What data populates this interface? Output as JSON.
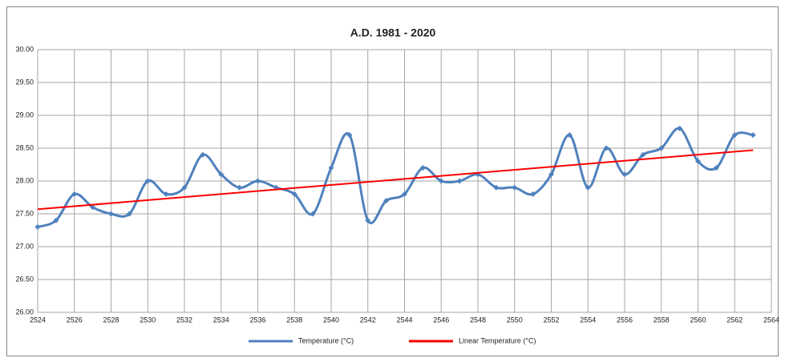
{
  "chart_data": {
    "type": "line",
    "title": "A.D. 1981 - 2020",
    "xlim": [
      2524,
      2564
    ],
    "xticks": [
      2524,
      2526,
      2528,
      2530,
      2532,
      2534,
      2536,
      2538,
      2540,
      2542,
      2544,
      2546,
      2548,
      2550,
      2552,
      2554,
      2556,
      2558,
      2560,
      2562,
      2564
    ],
    "ylim": [
      26,
      30
    ],
    "yticks": [
      {
        "value": 26,
        "label": "26.00"
      },
      {
        "value": 26.5,
        "label": "26.50"
      },
      {
        "value": 27,
        "label": "27.00"
      },
      {
        "value": 27.5,
        "label": "27.50"
      },
      {
        "value": 28,
        "label": "28.00"
      },
      {
        "value": 28.5,
        "label": "28.50"
      },
      {
        "value": 29,
        "label": "29.00"
      },
      {
        "value": 29.5,
        "label": "29.50"
      },
      {
        "value": 30,
        "label": "30.00"
      }
    ],
    "grid": true,
    "legend": "bottom",
    "series": [
      {
        "name": "Temperature (°C)",
        "color": "#4f81bd",
        "smooth": true,
        "markers": true,
        "x": [
          2524,
          2525,
          2526,
          2527,
          2528,
          2529,
          2530,
          2531,
          2532,
          2533,
          2534,
          2535,
          2536,
          2537,
          2538,
          2539,
          2540,
          2541,
          2542,
          2543,
          2544,
          2545,
          2546,
          2547,
          2548,
          2549,
          2550,
          2551,
          2552,
          2553,
          2554,
          2555,
          2556,
          2557,
          2558,
          2559,
          2560,
          2561,
          2562,
          2563
        ],
        "values": [
          27.3,
          27.4,
          27.8,
          27.6,
          27.5,
          27.5,
          28.0,
          27.8,
          27.9,
          28.4,
          28.1,
          27.9,
          28.0,
          27.9,
          27.8,
          27.5,
          28.2,
          28.7,
          27.4,
          27.7,
          27.8,
          28.2,
          28.0,
          28.0,
          28.1,
          27.9,
          27.9,
          27.8,
          28.1,
          28.7,
          27.9,
          28.5,
          28.1,
          28.4,
          28.5,
          28.8,
          28.3,
          28.2,
          28.7,
          28.7
        ]
      },
      {
        "name": "Linear Temperature (°C)",
        "color": "#ff0000",
        "smooth": false,
        "markers": false,
        "x": [
          2524,
          2563
        ],
        "values": [
          27.57,
          28.47
        ]
      }
    ]
  }
}
